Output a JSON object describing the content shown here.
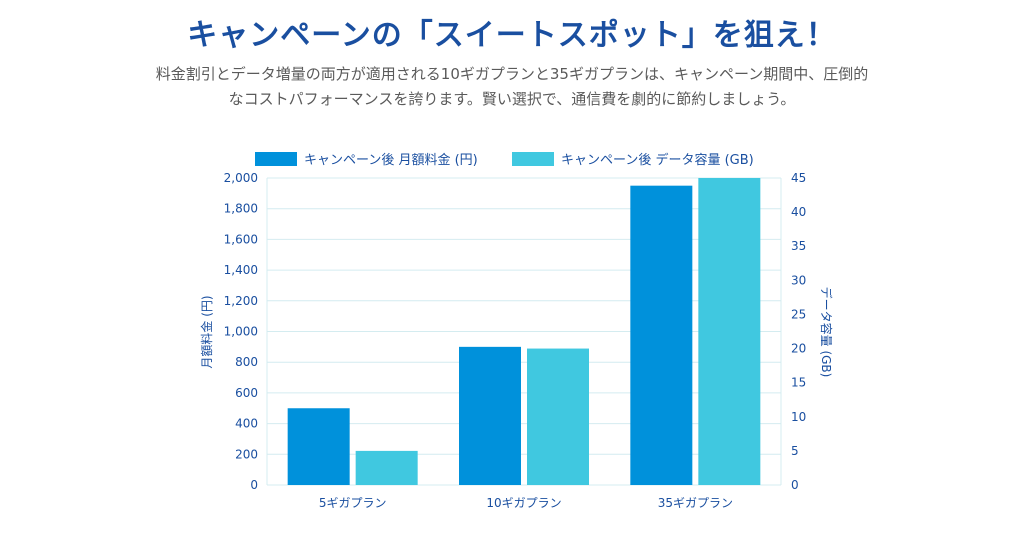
{
  "header": {
    "title": "キャンペーンの「スイートスポット」を狙え！",
    "subtitle_line1": "料金割引とデータ増量の両方が適用される10ギガプランと35ギガプランは、キャンペーン期間中、圧倒的",
    "subtitle_line2": "なコストパフォーマンスを誇ります。賢い選択で、通信費を劇的に節約しましょう。"
  },
  "colors": {
    "fee": "#0091db",
    "data": "#40c8e0",
    "grid": "#d4ecf0",
    "axis_text": "#1a4fa0"
  },
  "chart_data": {
    "type": "bar",
    "categories": [
      "5ギガプラン",
      "10ギガプラン",
      "35ギガプラン"
    ],
    "series": [
      {
        "name": "キャンペーン後 月額料金 (円)",
        "axis": "left",
        "values": [
          500,
          900,
          1950
        ]
      },
      {
        "name": "キャンペーン後 データ容量 (GB)",
        "axis": "right",
        "values": [
          5,
          20,
          45
        ]
      }
    ],
    "ylabel": "月額料金 (円)",
    "y2label": "データ容量 (GB)",
    "ylim": [
      0,
      2000
    ],
    "y2lim": [
      0,
      45
    ],
    "yticks": [
      "0",
      "200",
      "400",
      "600",
      "800",
      "1,000",
      "1,200",
      "1,400",
      "1,600",
      "1,800",
      "2,000"
    ],
    "y2ticks": [
      "0",
      "5",
      "10",
      "15",
      "20",
      "25",
      "30",
      "35",
      "40",
      "45"
    ],
    "grid": true,
    "legend_position": "top"
  }
}
